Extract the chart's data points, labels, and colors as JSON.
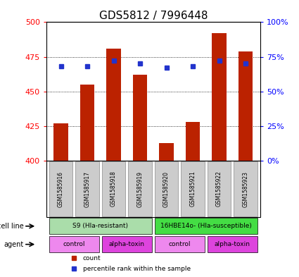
{
  "title": "GDS5812 / 7996448",
  "samples": [
    "GSM1585916",
    "GSM1585917",
    "GSM1585918",
    "GSM1585919",
    "GSM1585920",
    "GSM1585921",
    "GSM1585922",
    "GSM1585923"
  ],
  "bar_values": [
    427,
    455,
    481,
    462,
    413,
    428,
    492,
    479
  ],
  "percentile_values": [
    68,
    68,
    72,
    70,
    67,
    68,
    72,
    70
  ],
  "bar_bottom": 400,
  "ylim": [
    400,
    500
  ],
  "yticks": [
    400,
    425,
    450,
    475,
    500
  ],
  "right_ylim": [
    0,
    100
  ],
  "right_yticks": [
    0,
    25,
    50,
    75,
    100
  ],
  "right_yticklabels": [
    "0%",
    "25%",
    "50%",
    "75%",
    "100%"
  ],
  "bar_color": "#bb2200",
  "dot_color": "#2233cc",
  "cell_line_groups": [
    {
      "label": "S9 (Hla-resistant)",
      "start": 0,
      "end": 4,
      "color": "#aaddaa"
    },
    {
      "label": "16HBE14o- (Hla-susceptible)",
      "start": 4,
      "end": 8,
      "color": "#44dd44"
    }
  ],
  "agent_groups": [
    {
      "label": "control",
      "start": 0,
      "end": 2,
      "color": "#ee88ee"
    },
    {
      "label": "alpha-toxin",
      "start": 2,
      "end": 4,
      "color": "#dd44dd"
    },
    {
      "label": "control",
      "start": 4,
      "end": 6,
      "color": "#ee88ee"
    },
    {
      "label": "alpha-toxin",
      "start": 6,
      "end": 8,
      "color": "#dd44dd"
    }
  ],
  "legend_items": [
    {
      "label": "count",
      "color": "#bb2200"
    },
    {
      "label": "percentile rank within the sample",
      "color": "#2233cc"
    }
  ],
  "cell_line_label": "cell line",
  "agent_label": "agent",
  "title_fontsize": 11,
  "tick_fontsize": 8,
  "bar_width": 0.55,
  "sample_bg_color": "#cccccc",
  "sample_border_color": "#888888",
  "plot_bg_color": "#ffffff",
  "grid_color": "#000000",
  "grid_linestyle": ":",
  "grid_linewidth": 0.6,
  "grid_values": [
    425,
    450,
    475
  ]
}
